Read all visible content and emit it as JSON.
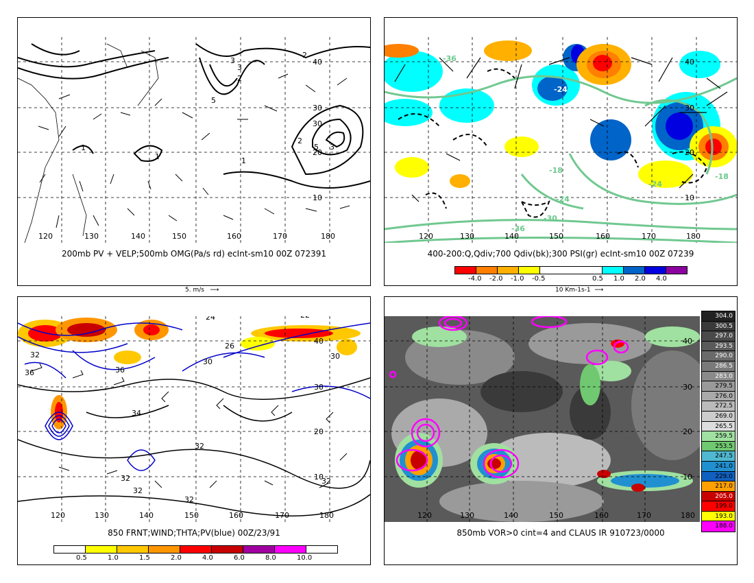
{
  "panels": {
    "p1": {
      "caption": "200mb PV + VELP;500mb OMG(Pa/s rd) ecInt-sm10 00Z 072391",
      "scale_label": "5. m/s",
      "lon_labels": [
        "120",
        "130",
        "140",
        "150",
        "160",
        "170",
        "180"
      ],
      "lat_labels": [
        "40",
        "30",
        "20",
        "10"
      ],
      "contour_labels": [
        "2",
        "3",
        "2",
        "5",
        "3",
        "30",
        "2",
        "5",
        "3",
        "1",
        "1",
        "1"
      ]
    },
    "p2": {
      "caption": "400-200:Q,Qdiv;700 Qdiv(bk);300 PSI(gr) ecInt-sm10 00Z 07239",
      "scale_label": "10 Km-1s-1",
      "lon_labels": [
        "120",
        "130",
        "140",
        "150",
        "160",
        "170",
        "180"
      ],
      "lat_labels": [
        "40",
        "30",
        "20",
        "10"
      ],
      "contour_labels": [
        "-36",
        "-24",
        "-18",
        "-24",
        "-30",
        "-36",
        "-18",
        "-24"
      ],
      "colorbar": {
        "labels": [
          "-4.0",
          "-2.0",
          "-1.0",
          "-0.5",
          "0.5",
          "1.0",
          "2.0",
          "4.0"
        ],
        "colors": [
          "#ff0000",
          "#ff7f00",
          "#ffb000",
          "#ffff00",
          "#ffffff",
          "#00ffff",
          "#0064c8",
          "#0000e0",
          "#8c00a0"
        ]
      }
    },
    "p3": {
      "caption": "850 FRNT;WIND;THTA;PV(blue) 00Z/23/91",
      "lon_labels": [
        "120",
        "130",
        "140",
        "150",
        "160",
        "170",
        "180"
      ],
      "lat_labels": [
        "40",
        "30",
        "20",
        "10"
      ],
      "contour_labels": [
        "24",
        "22",
        "32",
        "26",
        "36",
        "30",
        "36",
        "30",
        "34",
        "32",
        "32",
        "32",
        "32",
        "32"
      ],
      "colorbar": {
        "labels": [
          "0.5",
          "1.0",
          "1.5",
          "2.0",
          "4.0",
          "6.0",
          "8.0",
          "10.0"
        ],
        "colors": [
          "#ffffff",
          "#ffff00",
          "#ffc800",
          "#ff9600",
          "#ff0000",
          "#c80000",
          "#a000a0",
          "#ff00ff",
          "#ffffff"
        ]
      }
    },
    "p4": {
      "caption": "850mb VOR>0 cint=4 and CLAUS IR 910723/0000",
      "lon_labels": [
        "120",
        "130",
        "140",
        "150",
        "160",
        "170",
        "180"
      ],
      "lat_labels": [
        "40",
        "30",
        "20",
        "10"
      ],
      "colorbar": {
        "labels": [
          "304.0",
          "300.5",
          "297.0",
          "293.5",
          "290.0",
          "286.5",
          "283.0",
          "279.5",
          "276.0",
          "272.5",
          "269.0",
          "265.5",
          "259.5",
          "253.5",
          "247.5",
          "241.0",
          "229.0",
          "217.0",
          "205.0",
          "199.0",
          "193.0",
          "188.0"
        ],
        "colors": [
          "#222222",
          "#3a3a3a",
          "#4a4a4a",
          "#5a5a5a",
          "#6a6a6a",
          "#7a7a7a",
          "#8a8a8a",
          "#9a9a9a",
          "#aaaaaa",
          "#bbbbbb",
          "#cccccc",
          "#dddddd",
          "#a0e0a0",
          "#70c870",
          "#50b8d0",
          "#2090d0",
          "#1060c0",
          "#ffa000",
          "#c80000",
          "#ff0000",
          "#ffff00",
          "#ff00ff"
        ]
      }
    }
  }
}
